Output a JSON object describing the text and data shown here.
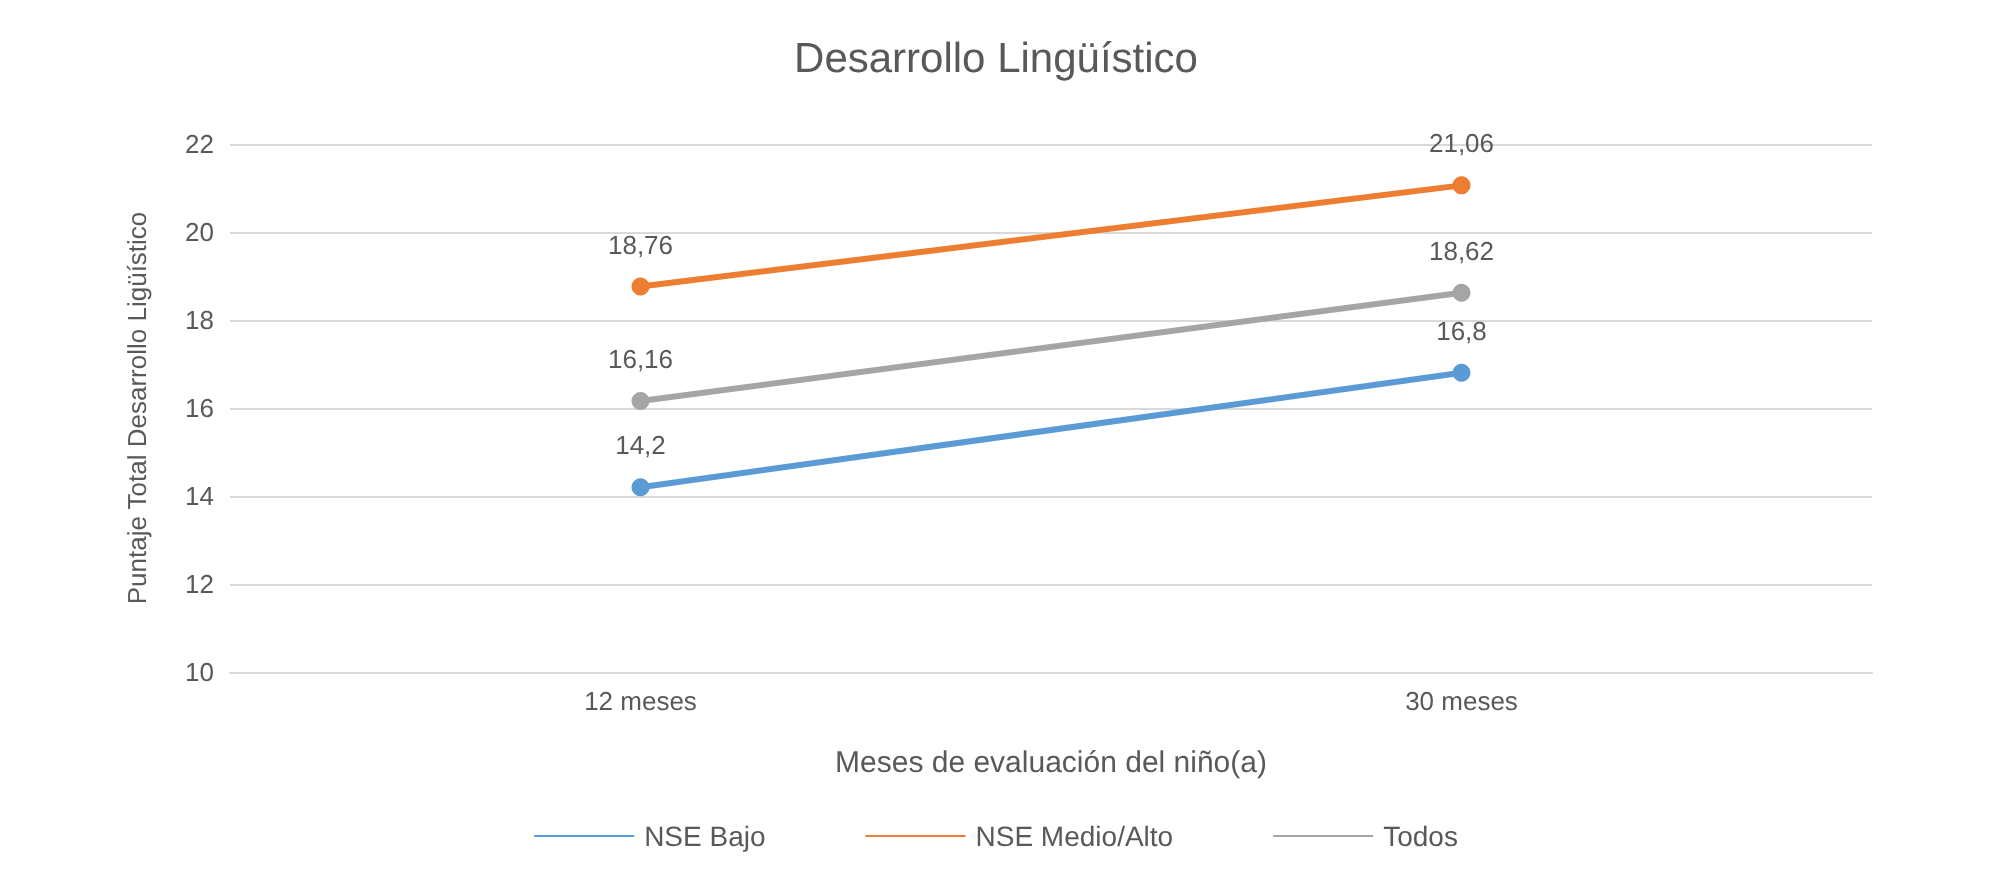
{
  "chart_data": {
    "type": "line",
    "title": "Desarrollo Lingüístico",
    "xlabel": "Meses de evaluación del niño(a)",
    "ylabel": "Puntaje Total Desarrollo Ligüístico",
    "categories": [
      "12 meses",
      "30 meses"
    ],
    "series": [
      {
        "name": "NSE Bajo",
        "color": "#5b9bd5",
        "values": [
          14.2,
          16.8
        ],
        "value_labels": [
          "14,2",
          "16,8"
        ]
      },
      {
        "name": "NSE Medio/Alto",
        "color": "#ed7d31",
        "values": [
          18.76,
          21.06
        ],
        "value_labels": [
          "18,76",
          "21,06"
        ]
      },
      {
        "name": "Todos",
        "color": "#a5a5a5",
        "values": [
          16.16,
          18.62
        ],
        "value_labels": [
          "16,16",
          "18,62"
        ]
      }
    ],
    "ylim": [
      10,
      22
    ],
    "yticks": [
      10,
      12,
      14,
      16,
      18,
      20,
      22
    ],
    "grid": "y",
    "legend": "bottom",
    "marker": "circle",
    "line_style": "solid"
  }
}
